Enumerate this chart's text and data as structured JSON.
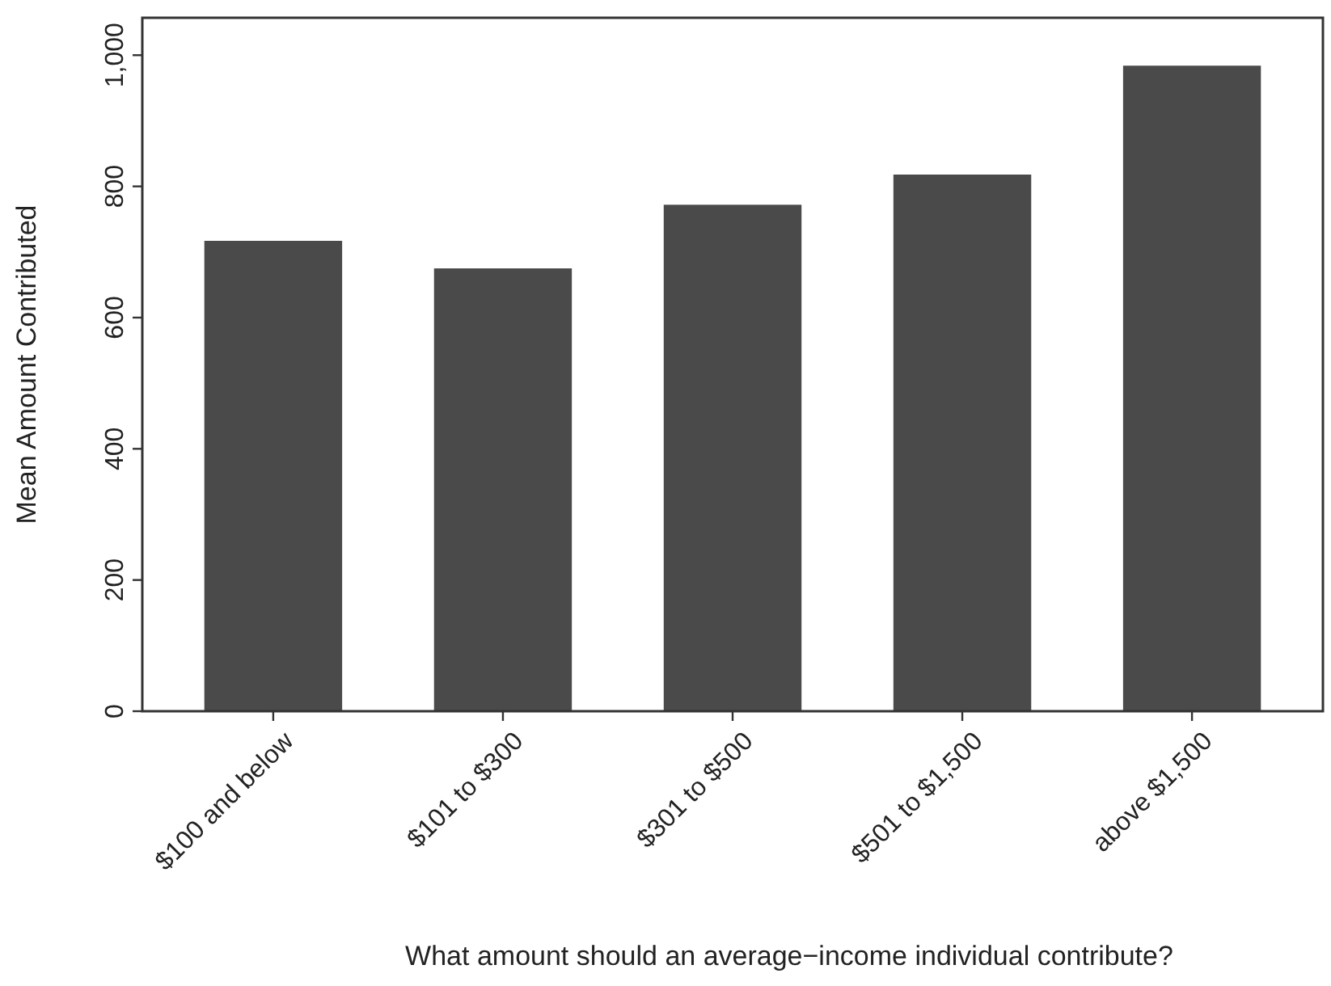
{
  "chart_data": {
    "type": "bar",
    "xlabel": "What amount should an average−income individual contribute?",
    "ylabel": "Mean Amount Contributed",
    "categories": [
      "$100 and below",
      "$101 to $300",
      "$301 to $500",
      "$501 to $1,500",
      "above $1,500"
    ],
    "values": [
      717,
      675,
      772,
      818,
      984
    ],
    "color": "#4a4a4a",
    "ylim": [
      0,
      1057
    ],
    "yticks": [
      0,
      200,
      400,
      600,
      800,
      {
        "value": 1000,
        "label": "1,000"
      }
    ],
    "grid": false
  }
}
